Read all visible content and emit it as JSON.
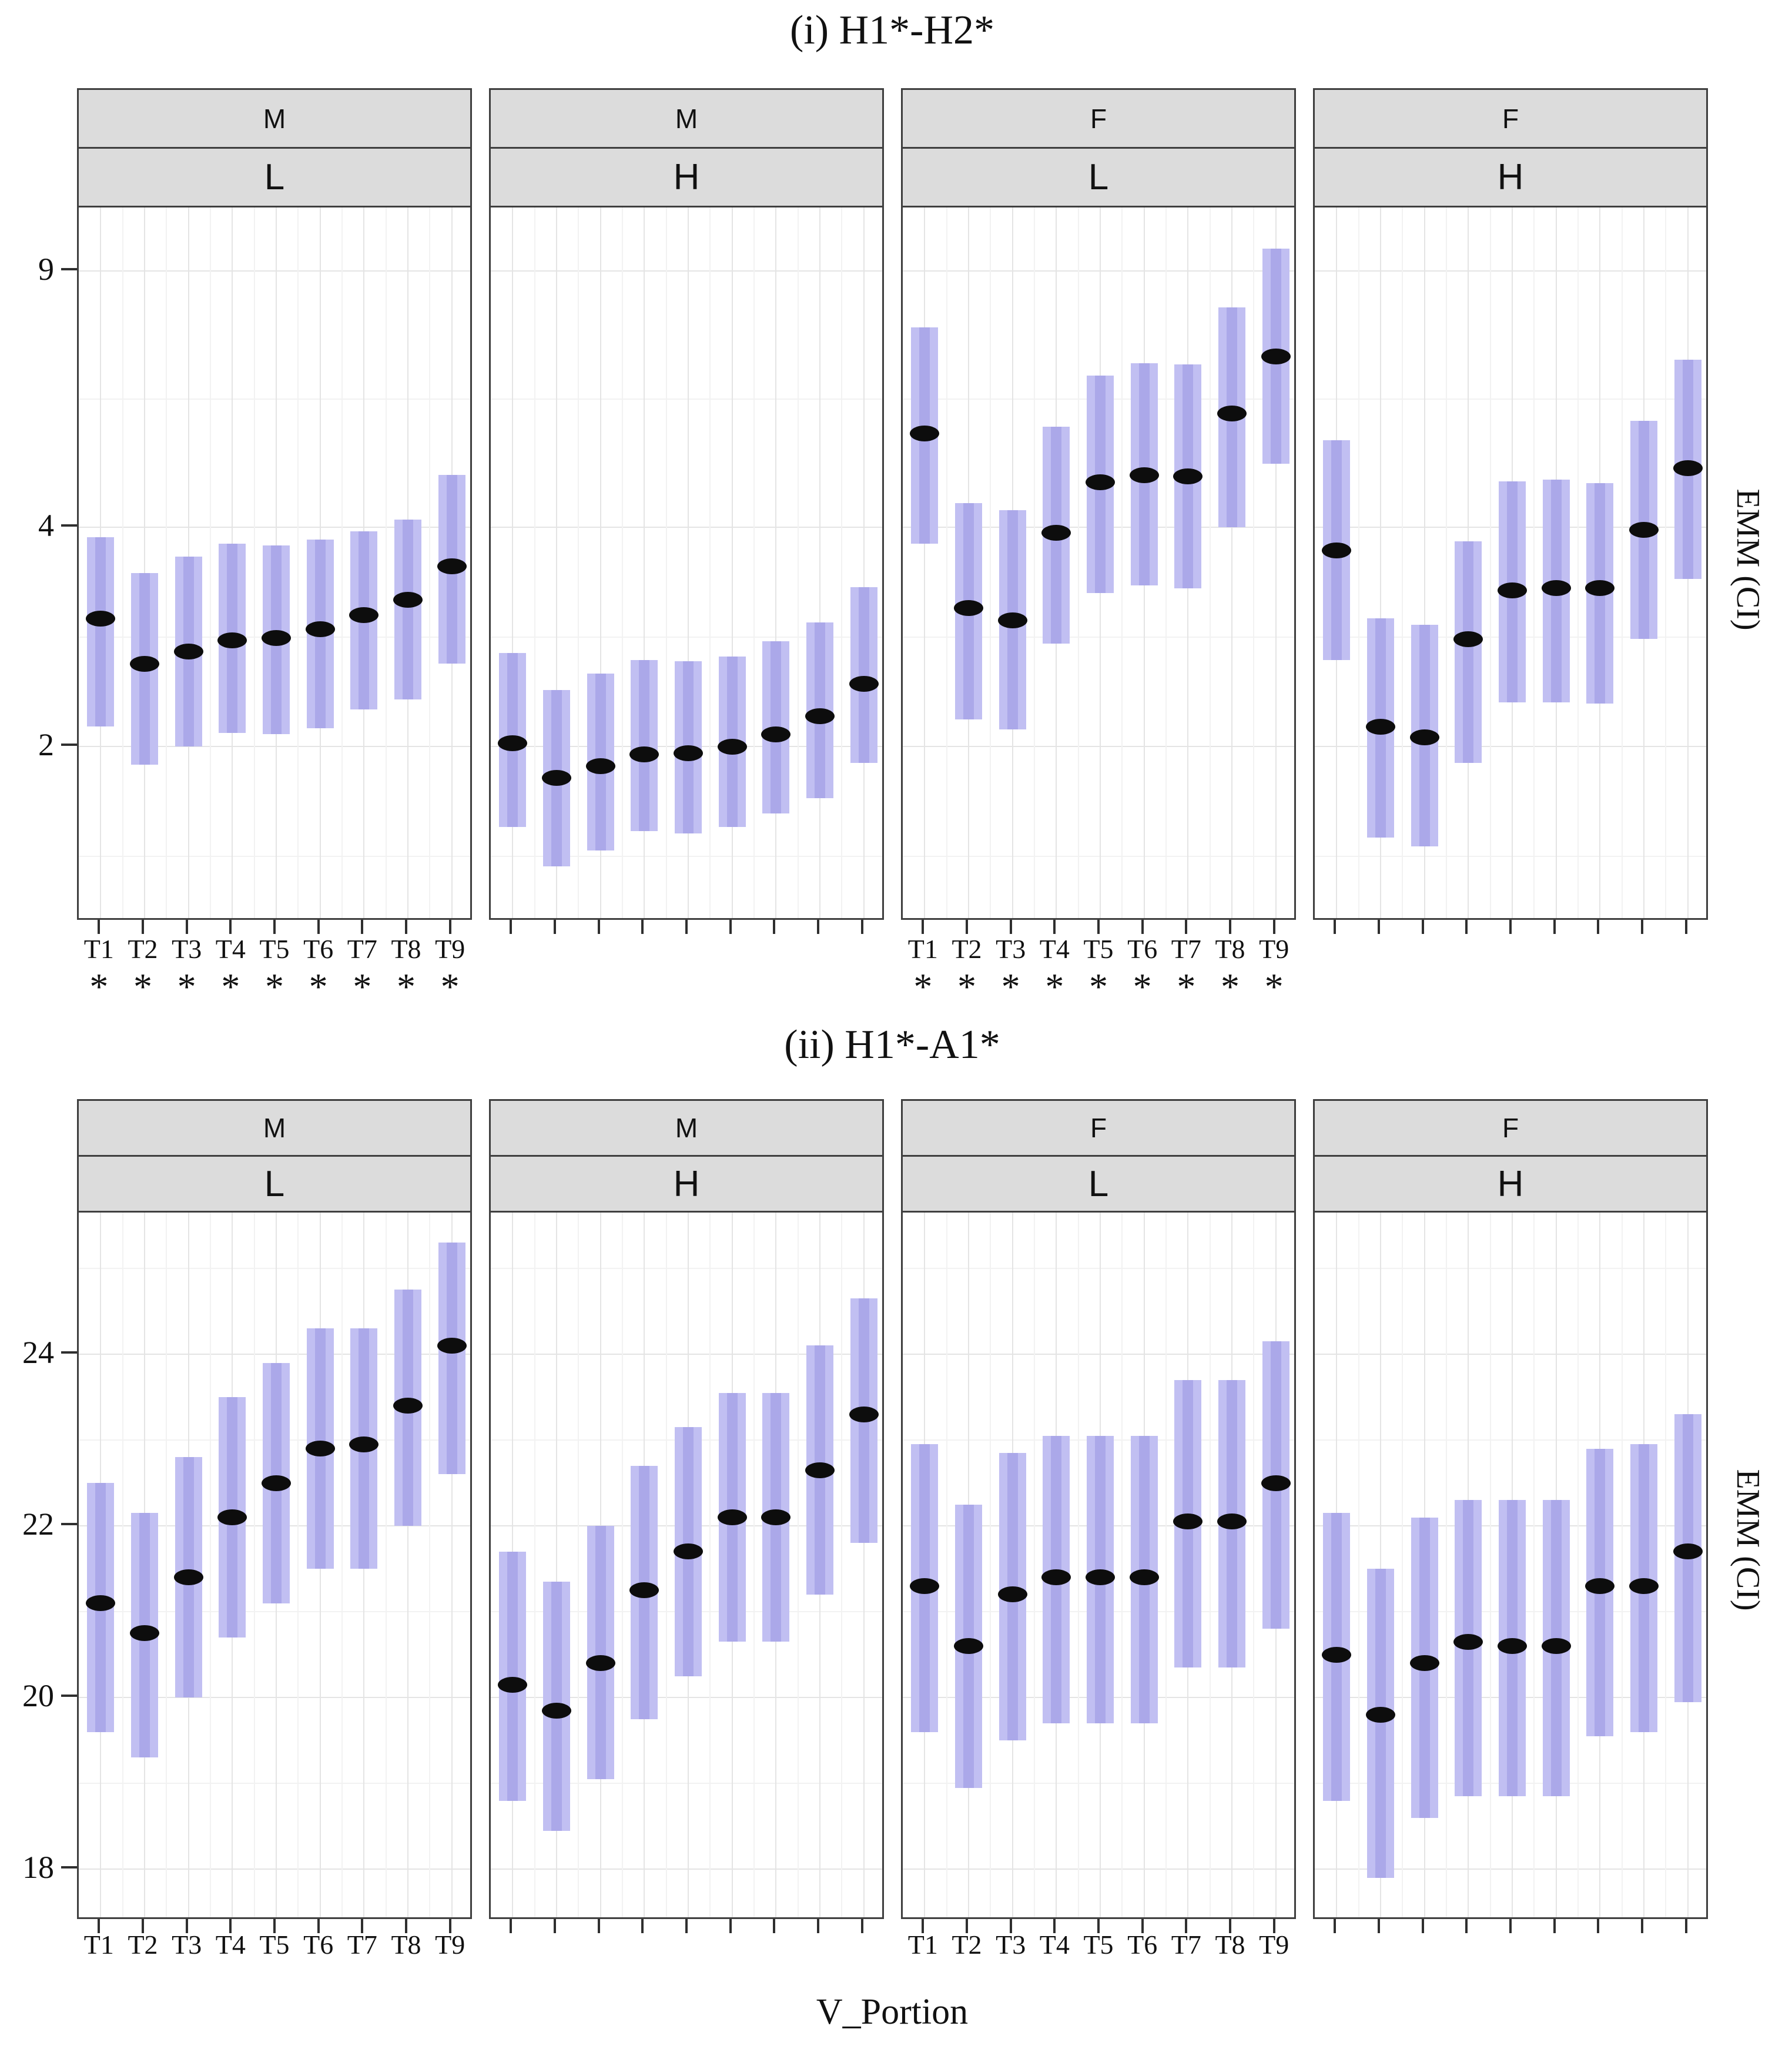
{
  "figure": {
    "xlabel": "V_Portion",
    "ylabel_right": "EMM (CI)",
    "sig_marker": "*",
    "x_categories": [
      "T1",
      "T2",
      "T3",
      "T4",
      "T5",
      "T6",
      "T7",
      "T8",
      "T9"
    ]
  },
  "colors": {
    "background": "#ffffff",
    "bar_fill": "#c1bff2",
    "bar_fill_core": "#aba8e9",
    "dot": "#0d0d0d",
    "header_fill": "#dcdcdc",
    "panel_border": "#3f3f3f",
    "grid_major": "#e4e4e4",
    "grid_minor": "#f2f2f2",
    "tick": "#2f2f2f"
  },
  "chart_data": [
    {
      "type": "pointrange",
      "title": "(i) H1*-H2*",
      "ylabel": "EMM (CI)",
      "xlabel": "",
      "x_categories": [
        "T1",
        "T2",
        "T3",
        "T4",
        "T5",
        "T6",
        "T7",
        "T8",
        "T9"
      ],
      "y_scale": "log",
      "ylim": [
        1.15,
        11
      ],
      "y_ticks": [
        9,
        4,
        2
      ],
      "y_minor": [
        6,
        2.8284,
        1.4142
      ],
      "grid": true,
      "legend": "none",
      "facets": [
        {
          "sex": "M",
          "register": "L",
          "show_x_labels": true,
          "asterisks": true,
          "mean": [
            3.0,
            2.6,
            2.7,
            2.8,
            2.82,
            2.9,
            3.03,
            3.18,
            3.54
          ],
          "ci_low": [
            2.13,
            1.89,
            2.0,
            2.09,
            2.08,
            2.12,
            2.25,
            2.32,
            2.6
          ],
          "ci_high": [
            3.88,
            3.46,
            3.65,
            3.8,
            3.78,
            3.85,
            3.95,
            4.1,
            4.72
          ]
        },
        {
          "sex": "M",
          "register": "H",
          "show_x_labels": false,
          "asterisks": false,
          "mean": [
            2.02,
            1.81,
            1.88,
            1.95,
            1.96,
            2.0,
            2.08,
            2.2,
            2.44
          ],
          "ci_low": [
            1.55,
            1.37,
            1.44,
            1.53,
            1.52,
            1.55,
            1.62,
            1.7,
            1.9
          ],
          "ci_high": [
            2.69,
            2.39,
            2.52,
            2.63,
            2.62,
            2.66,
            2.79,
            2.96,
            3.31
          ]
        },
        {
          "sex": "F",
          "register": "L",
          "show_x_labels": true,
          "asterisks": true,
          "mean": [
            5.38,
            3.1,
            2.98,
            3.93,
            4.61,
            4.72,
            4.7,
            5.73,
            6.87
          ],
          "ci_low": [
            3.8,
            2.18,
            2.11,
            2.77,
            3.25,
            3.33,
            3.3,
            4.0,
            4.89
          ],
          "ci_high": [
            7.53,
            4.32,
            4.22,
            5.5,
            6.46,
            6.72,
            6.7,
            8.02,
            9.66
          ]
        },
        {
          "sex": "F",
          "register": "H",
          "show_x_labels": false,
          "asterisks": false,
          "mean": [
            3.72,
            2.13,
            2.06,
            2.81,
            3.28,
            3.3,
            3.3,
            3.97,
            4.82
          ],
          "ci_low": [
            2.63,
            1.5,
            1.46,
            1.9,
            2.3,
            2.3,
            2.29,
            2.81,
            3.4
          ],
          "ci_high": [
            5.27,
            3.0,
            2.94,
            3.83,
            4.63,
            4.65,
            4.6,
            5.6,
            6.8
          ]
        }
      ]
    },
    {
      "type": "pointrange",
      "title": "(ii) H1*-A1*",
      "ylabel": "EMM (CI)",
      "xlabel": "V_Portion",
      "x_categories": [
        "T1",
        "T2",
        "T3",
        "T4",
        "T5",
        "T6",
        "T7",
        "T8",
        "T9"
      ],
      "y_scale": "linear",
      "ylim": [
        17.4,
        25.65
      ],
      "y_ticks": [
        24,
        22,
        20,
        18
      ],
      "y_minor": [
        25,
        23,
        21,
        19
      ],
      "grid": true,
      "legend": "none",
      "facets": [
        {
          "sex": "M",
          "register": "L",
          "show_x_labels": true,
          "asterisks": false,
          "mean": [
            21.1,
            20.75,
            21.4,
            22.1,
            22.5,
            22.9,
            22.95,
            23.4,
            24.1
          ],
          "ci_low": [
            19.6,
            19.3,
            20.0,
            20.7,
            21.1,
            21.5,
            21.5,
            22.0,
            22.6
          ],
          "ci_high": [
            22.5,
            22.15,
            22.8,
            23.5,
            23.9,
            24.3,
            24.3,
            24.75,
            25.3
          ]
        },
        {
          "sex": "M",
          "register": "H",
          "show_x_labels": false,
          "asterisks": false,
          "mean": [
            20.15,
            19.85,
            20.4,
            21.25,
            21.7,
            22.1,
            22.1,
            22.65,
            23.3
          ],
          "ci_low": [
            18.8,
            18.45,
            19.05,
            19.75,
            20.25,
            20.65,
            20.65,
            21.2,
            21.8
          ],
          "ci_high": [
            21.7,
            21.35,
            22.0,
            22.7,
            23.15,
            23.55,
            23.55,
            24.1,
            24.65
          ]
        },
        {
          "sex": "F",
          "register": "L",
          "show_x_labels": true,
          "asterisks": false,
          "mean": [
            21.3,
            20.6,
            21.2,
            21.4,
            21.4,
            21.4,
            22.05,
            22.05,
            22.5
          ],
          "ci_low": [
            19.6,
            18.95,
            19.5,
            19.7,
            19.7,
            19.7,
            20.35,
            20.35,
            20.8
          ],
          "ci_high": [
            22.95,
            22.25,
            22.85,
            23.05,
            23.05,
            23.05,
            23.7,
            23.7,
            24.15
          ]
        },
        {
          "sex": "F",
          "register": "H",
          "show_x_labels": false,
          "asterisks": false,
          "mean": [
            20.5,
            19.8,
            20.4,
            20.65,
            20.6,
            20.6,
            21.3,
            21.3,
            21.7
          ],
          "ci_low": [
            18.8,
            17.9,
            18.6,
            18.85,
            18.85,
            18.85,
            19.55,
            19.6,
            19.95
          ],
          "ci_high": [
            22.15,
            21.5,
            22.1,
            22.3,
            22.3,
            22.3,
            22.9,
            22.95,
            23.3
          ]
        }
      ]
    }
  ]
}
